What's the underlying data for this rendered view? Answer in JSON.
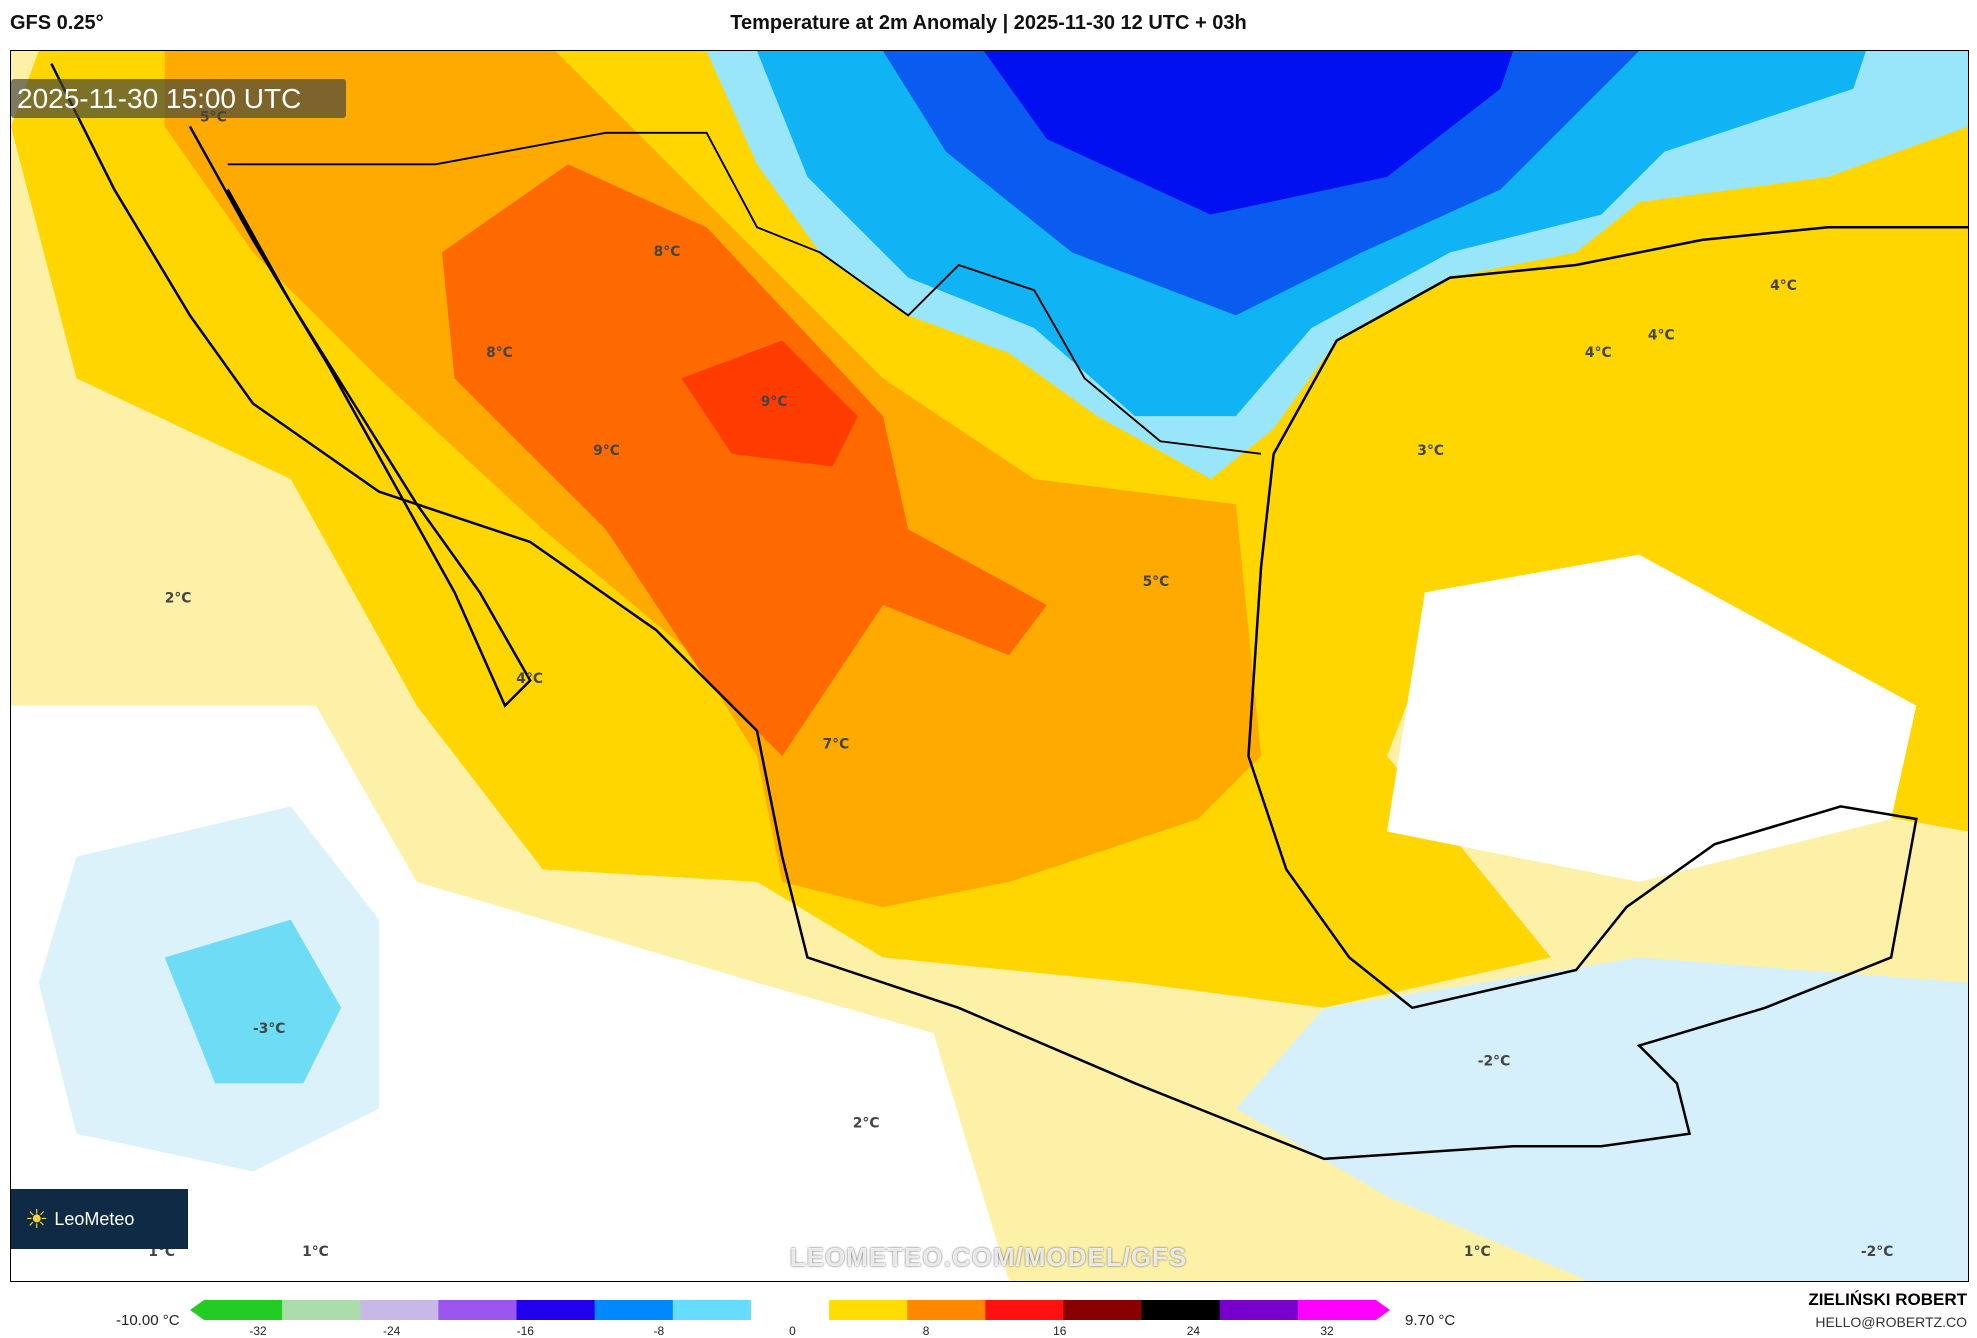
{
  "header": {
    "model": "GFS 0.25°",
    "title": "Temperature at 2m Anomaly | 2025-11-30 12 UTC + 03h"
  },
  "map": {
    "timestamp": "2025-11-30 15:00 UTC",
    "logo_text": "LeoMeteo",
    "watermark": "LEOMETEO.COM/MODEL/GFS",
    "labels": [
      "5°C",
      "8°C",
      "8°C",
      "9°C",
      "9°C",
      "2°C",
      "4°C",
      "7°C",
      "5°C",
      "3°C",
      "4°C",
      "4°C",
      "4°C",
      "-3°C",
      "2°C",
      "-2°C",
      "1°C",
      "1°C",
      "1°C",
      "-2°C"
    ]
  },
  "colorbar": {
    "min_label": "-10.00 °C",
    "max_label": "9.70 °C",
    "ticks": [
      "-32",
      "-24",
      "-16",
      "-8",
      "0",
      "8",
      "16",
      "24",
      "32"
    ],
    "colors": [
      "#22cc22",
      "#aaddaa",
      "#c8b8e8",
      "#9955ee",
      "#2200ee",
      "#0088ff",
      "#66ddff",
      "#ffffff",
      "#ffdd00",
      "#ff8800",
      "#ff1111",
      "#880000",
      "#000000",
      "#7700cc",
      "#ff00ff"
    ]
  },
  "author": {
    "name": "ZIELIŃSKI ROBERT",
    "email": "HELLO@ROBERTZ.CO"
  }
}
